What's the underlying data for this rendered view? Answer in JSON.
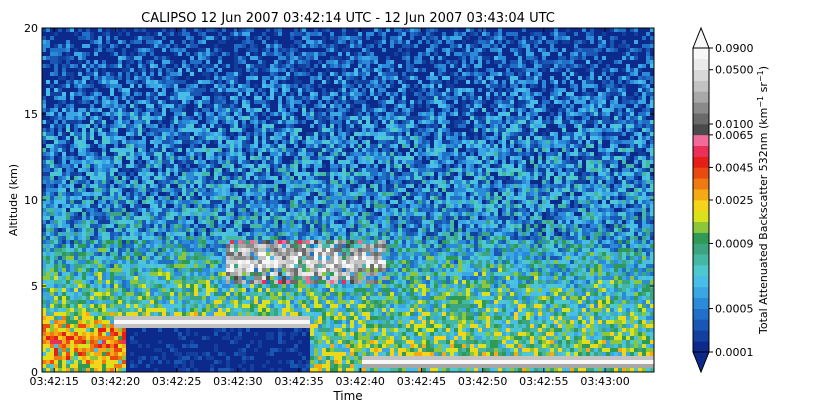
{
  "chart_data": {
    "type": "heatmap",
    "title": "CALIPSO 12 Jun 2007 03:42:14 UTC - 12 Jun 2007 03:43:04 UTC",
    "xlabel": "Time",
    "ylabel": "Altitude (km)",
    "xlim": [
      "03:42:14",
      "03:43:04"
    ],
    "ylim": [
      0,
      20
    ],
    "x_ticks": [
      "03:42:15",
      "03:42:20",
      "03:42:25",
      "03:42:30",
      "03:42:35",
      "03:42:40",
      "03:42:45",
      "03:42:50",
      "03:42:55",
      "03:43:00"
    ],
    "y_ticks": [
      "0",
      "5",
      "10",
      "15",
      "20"
    ],
    "colorbar": {
      "label": "Total Attenuated Backscatter 532nm (km",
      "label_sup1": "−1",
      "label_mid": " sr",
      "label_sup2": "−1",
      "label_end": ")",
      "scale": "log",
      "tick_labels": [
        "0.0001",
        "0.0005",
        "0.0009",
        "0.0025",
        "0.0045",
        "0.0065",
        "0.0100",
        "0.0500",
        "0.0900"
      ],
      "tick_values": [
        0.0001,
        0.0005,
        0.0009,
        0.0025,
        0.0045,
        0.0065,
        0.01,
        0.05,
        0.09
      ],
      "extend": "both"
    },
    "features": [
      {
        "name": "boundary-layer aerosol layer",
        "t_start": "03:42:14",
        "t_end": "03:42:35",
        "alt_bottom_km": 0.0,
        "alt_top_km": 3.5,
        "level": 0.0045
      },
      {
        "name": "low stratus cloud top",
        "t_start": "03:42:20",
        "t_end": "03:42:36",
        "alt_km": 2.9,
        "level": 0.09
      },
      {
        "name": "mid-level cloud",
        "t_start": "03:42:29",
        "t_end": "03:42:42",
        "alt_bottom_km": 5.1,
        "alt_top_km": 7.7,
        "level": 0.05
      },
      {
        "name": "surface return",
        "t_start": "03:42:40",
        "t_end": "03:43:04",
        "alt_km": 0.6,
        "level": 0.09
      }
    ]
  }
}
